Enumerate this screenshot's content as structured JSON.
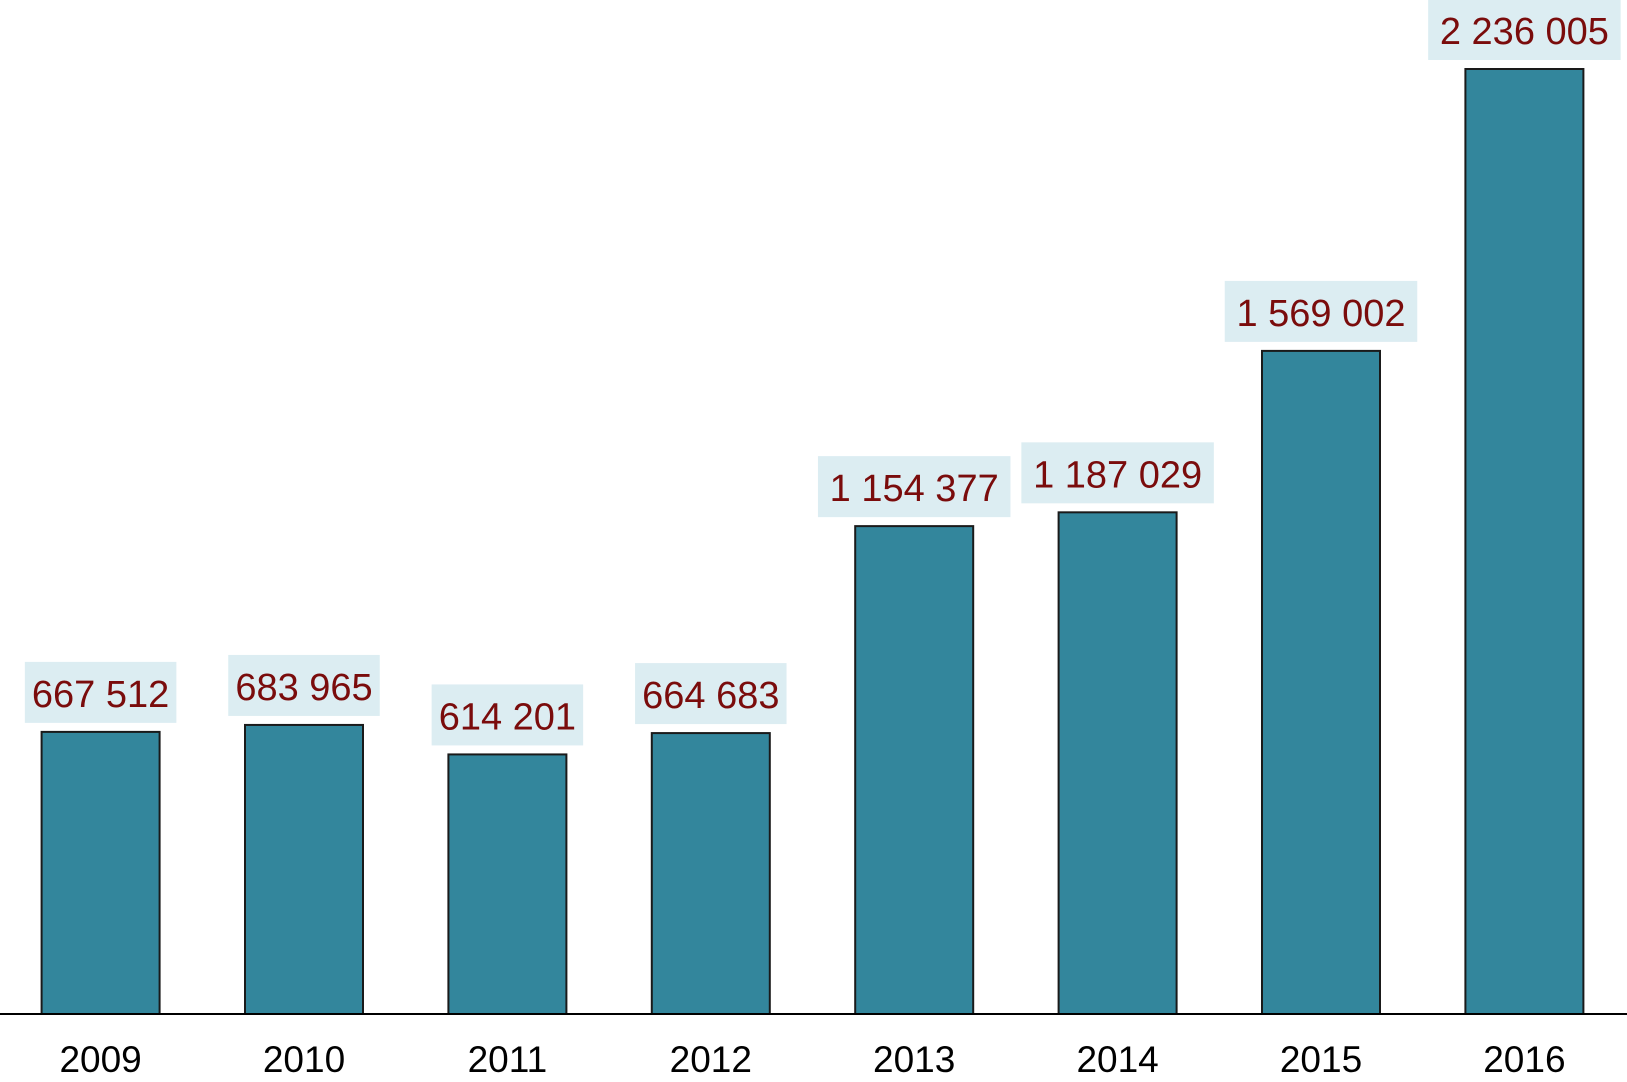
{
  "chart_data": {
    "type": "bar",
    "title": "",
    "xlabel": "",
    "ylabel": "",
    "categories": [
      "2009",
      "2010",
      "2011",
      "2012",
      "2013",
      "2014",
      "2015",
      "2016"
    ],
    "values": [
      667512,
      683965,
      614201,
      664683,
      1154377,
      1187029,
      1569002,
      2236005
    ],
    "data_labels": [
      "667 512",
      "683 965",
      "614 201",
      "664 683",
      "1 154 377",
      "1 187 029",
      "1 569 002",
      "2 236 005"
    ],
    "ylim": [
      0,
      2236005
    ],
    "grid": false,
    "legend": "none",
    "colors": {
      "bar": "#33869c",
      "bar_edge": "#1a1a1a",
      "label_text": "#7a0c0c",
      "label_bg": "#dcedf2",
      "axis": "#000000"
    }
  }
}
